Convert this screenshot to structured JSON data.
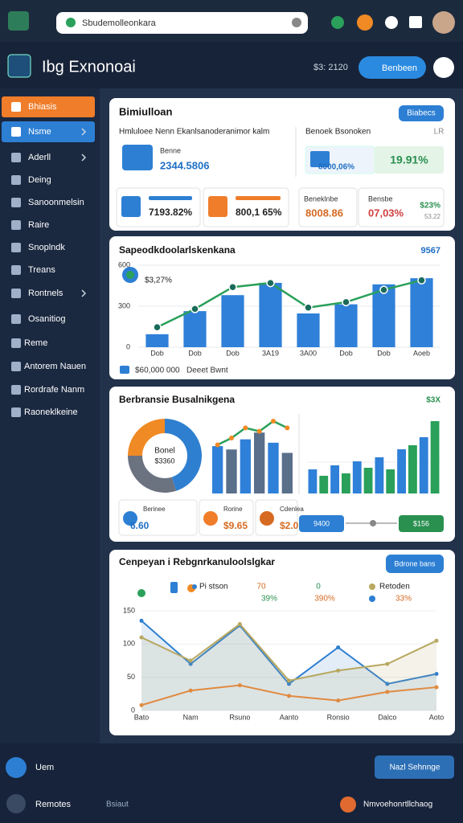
{
  "browser": {
    "url": "Sbudemolleonkara"
  },
  "header": {
    "title": "Ibg Exnonoai",
    "stat": "$3: 2120",
    "button": "Benbeen"
  },
  "sidebar": {
    "items": [
      "Bhiasis",
      "Nsme",
      "Aderll",
      "Deing",
      "Sanoonmelsin",
      "Raire",
      "Snoplndk",
      "Treans",
      "Rontnels",
      "Osanitiog",
      "Reme",
      "Antorem Nauen",
      "Rordrafe Nanm",
      "Raoneklkeine"
    ]
  },
  "summary": {
    "title": "Bimiulloan",
    "button": "Biabecs",
    "left_heading": "Hmluloee Nenn Ekanlsanoderanimor kalm",
    "right_heading": "Benoek Bsonoken",
    "right_tag": "LR",
    "main_label": "Benne",
    "main_value": "2344.5806",
    "side_value": "8000,06%",
    "highlight": "19.91%",
    "tiles": [
      {
        "value": "7193.82%"
      },
      {
        "value": "800,1 65%"
      },
      {
        "label": "Beneklnbe",
        "value": "8008.86"
      },
      {
        "label": "Bensbe",
        "value": "07,03%",
        "change": "$23%",
        "sub": "53,22"
      }
    ]
  },
  "trend_chart": {
    "title": "Sapeodkdoolarlskenkana",
    "badge": "9567",
    "note": "$3,27%",
    "ylim": [
      0,
      600
    ],
    "yticks": [
      0,
      300,
      600
    ],
    "categories": [
      "Dob",
      "Dob",
      "Dob",
      "3A19",
      "3A00",
      "Dob",
      "Dob",
      "Aoeb"
    ],
    "series": [
      {
        "type": "bar",
        "color": "#2f80d8",
        "values": [
          95,
          264,
          381,
          471,
          247,
          314,
          460,
          505
        ]
      },
      {
        "type": "line",
        "color": "#2aa05a",
        "values": [
          146,
          280,
          440,
          470,
          290,
          330,
          420,
          490
        ]
      }
    ],
    "footer": {
      "value": "$60,000 000",
      "label": "Deeet Bwnt"
    }
  },
  "breakdown": {
    "title": "Berbransie Busalnikgena",
    "tag": "$3X",
    "donut": {
      "label": "Bonel",
      "value": "$3360",
      "values": [
        45,
        30,
        25
      ],
      "colors": [
        "#2f7fd0",
        "#6b7280",
        "#f08a24"
      ]
    },
    "mini_bars": {
      "color": "#2f80d8",
      "values": [
        70,
        65,
        80,
        90,
        75,
        60
      ]
    },
    "mini_line": {
      "color": "#2aa05a",
      "values": [
        60,
        70,
        85,
        80,
        95,
        85
      ]
    },
    "side_bars": {
      "colors": [
        "#2f80d8",
        "#2aa05a"
      ],
      "values": [
        30,
        22,
        35,
        25,
        40,
        32,
        45,
        30,
        55,
        60,
        70,
        90
      ]
    },
    "tiles": [
      {
        "label": "Berinee",
        "value": "6.60"
      },
      {
        "label": "Rorine",
        "value": "$9.65"
      },
      {
        "label": "Cdenlea",
        "value": "$2.0"
      }
    ],
    "slider_low": "9400",
    "slider_high": "$156"
  },
  "comparison": {
    "title": "Cenpeyan i Rebgnrkanuloolslgkar",
    "button": "Bdrone bans",
    "stats": [
      "70",
      "39%",
      "0",
      "390%",
      "33%"
    ],
    "ylim": [
      0,
      150
    ],
    "yticks": [
      0,
      50,
      100,
      150
    ],
    "categories": [
      "Bato",
      "Nam",
      "Rsuno",
      "Aanto",
      "Ronsio",
      "Dalco",
      "Aoto"
    ],
    "series": [
      {
        "name": "Pi stson",
        "color": "#2f7fd0",
        "values": [
          135,
          70,
          128,
          40,
          95,
          40,
          55
        ]
      },
      {
        "name": "Retoden",
        "color": "#b8a860",
        "values": [
          110,
          75,
          130,
          45,
          60,
          70,
          105
        ]
      },
      {
        "color": "#e08a40",
        "values": [
          8,
          30,
          38,
          22,
          15,
          28,
          35
        ]
      }
    ]
  },
  "footer": {
    "user": "Uem",
    "button": "Nazl Sehnnge",
    "left": "Remotes",
    "middle": "Bsiaut",
    "right": "Nmvoehonrtllchaog"
  }
}
